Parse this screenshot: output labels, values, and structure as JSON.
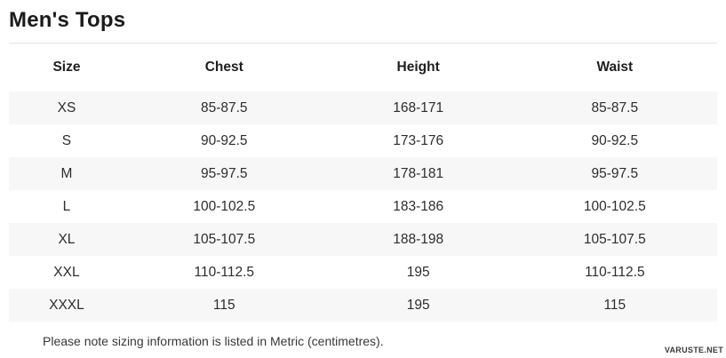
{
  "page": {
    "title": "Men's Tops",
    "note": "Please note sizing information is listed in Metric (centimetres).",
    "watermark": "VARUSTE.NET"
  },
  "colors": {
    "row_stripe": "#f7f7f7",
    "divider": "#e4e4e4",
    "text": "#2d2d2d",
    "title_text": "#1b1b1b"
  },
  "table": {
    "headers": [
      "Size",
      "Chest",
      "Height",
      "Waist"
    ],
    "rows": [
      [
        "XS",
        "85-87.5",
        "168-171",
        "85-87.5"
      ],
      [
        "S",
        "90-92.5",
        "173-176",
        "90-92.5"
      ],
      [
        "M",
        "95-97.5",
        "178-181",
        "95-97.5"
      ],
      [
        "L",
        "100-102.5",
        "183-186",
        "100-102.5"
      ],
      [
        "XL",
        "105-107.5",
        "188-198",
        "105-107.5"
      ],
      [
        "XXL",
        "110-112.5",
        "195",
        "110-112.5"
      ],
      [
        "XXXL",
        "115",
        "195",
        "115"
      ]
    ]
  },
  "chart_data": {
    "type": "table",
    "title": "Men's Tops",
    "columns": [
      "Size",
      "Chest",
      "Height",
      "Waist"
    ],
    "rows": [
      [
        "XS",
        "85-87.5",
        "168-171",
        "85-87.5"
      ],
      [
        "S",
        "90-92.5",
        "173-176",
        "90-92.5"
      ],
      [
        "M",
        "95-97.5",
        "178-181",
        "95-97.5"
      ],
      [
        "L",
        "100-102.5",
        "183-186",
        "100-102.5"
      ],
      [
        "XL",
        "105-107.5",
        "188-198",
        "105-107.5"
      ],
      [
        "XXL",
        "110-112.5",
        "195",
        "110-112.5"
      ],
      [
        "XXXL",
        "115",
        "195",
        "115"
      ]
    ],
    "units": "Metric (centimetres)"
  }
}
